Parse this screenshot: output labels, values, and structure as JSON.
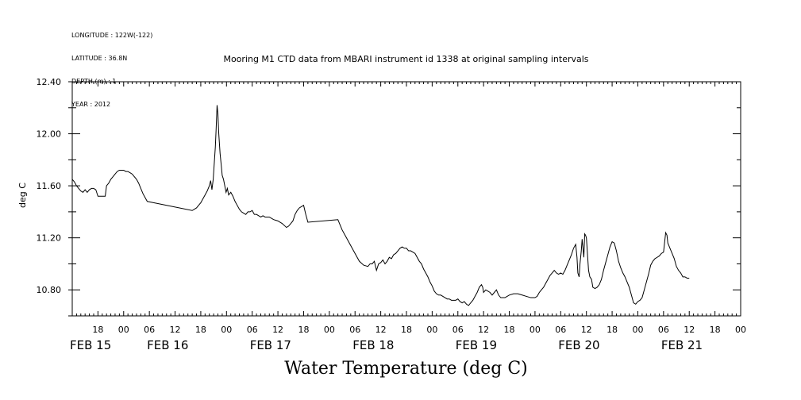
{
  "meta": {
    "longitude": "LONGITUDE : 122W(-122)",
    "latitude": "LATITUDE : 36.8N",
    "depth": "DEPTH (m) : 1",
    "year": "YEAR : 2012"
  },
  "chart_data": {
    "type": "line",
    "title": "Mooring M1 CTD data from MBARI instrument id 1338 at original sampling intervals",
    "ylabel": "deg C",
    "xlabel": "Water Temperature (deg C)",
    "ylim": [
      10.6,
      12.4
    ],
    "xlim_hours": [
      0,
      156
    ],
    "y_ticks": [
      "12.40",
      "12.00",
      "11.60",
      "11.20",
      "10.80"
    ],
    "hour_tick_labels": [
      {
        "h": 6,
        "label": "18"
      },
      {
        "h": 12,
        "label": "00"
      },
      {
        "h": 18,
        "label": "06"
      },
      {
        "h": 24,
        "label": "12"
      },
      {
        "h": 30,
        "label": "18"
      },
      {
        "h": 36,
        "label": "00"
      },
      {
        "h": 42,
        "label": "06"
      },
      {
        "h": 48,
        "label": "12"
      },
      {
        "h": 54,
        "label": "18"
      },
      {
        "h": 60,
        "label": "00"
      },
      {
        "h": 66,
        "label": "06"
      },
      {
        "h": 72,
        "label": "12"
      },
      {
        "h": 78,
        "label": "18"
      },
      {
        "h": 84,
        "label": "00"
      },
      {
        "h": 90,
        "label": "06"
      },
      {
        "h": 96,
        "label": "12"
      },
      {
        "h": 102,
        "label": "18"
      },
      {
        "h": 108,
        "label": "00"
      },
      {
        "h": 114,
        "label": "06"
      },
      {
        "h": 120,
        "label": "12"
      },
      {
        "h": 126,
        "label": "18"
      },
      {
        "h": 132,
        "label": "00"
      },
      {
        "h": 138,
        "label": "06"
      },
      {
        "h": 144,
        "label": "12"
      },
      {
        "h": 150,
        "label": "18"
      },
      {
        "h": 156,
        "label": "00"
      }
    ],
    "day_labels": [
      {
        "h": 0,
        "label": "FEB 15"
      },
      {
        "h": 18,
        "label": "FEB 16"
      },
      {
        "h": 42,
        "label": "FEB 17"
      },
      {
        "h": 66,
        "label": "FEB 18"
      },
      {
        "h": 90,
        "label": "FEB 19"
      },
      {
        "h": 114,
        "label": "FEB 20"
      },
      {
        "h": 138,
        "label": "FEB 21"
      }
    ],
    "series": [
      {
        "points": [
          [
            0.0,
            11.65
          ],
          [
            0.5,
            11.63
          ],
          [
            1.0,
            11.6
          ],
          [
            1.5,
            11.58
          ],
          [
            2.0,
            11.56
          ],
          [
            2.5,
            11.55
          ],
          [
            3.0,
            11.57
          ],
          [
            3.5,
            11.55
          ],
          [
            4.0,
            11.57
          ],
          [
            4.5,
            11.58
          ],
          [
            5.0,
            11.58
          ],
          [
            5.5,
            11.57
          ],
          [
            6.0,
            11.52
          ],
          [
            7.0,
            11.52
          ],
          [
            7.7,
            11.52
          ],
          [
            8.0,
            11.6
          ],
          [
            8.5,
            11.62
          ],
          [
            9.0,
            11.65
          ],
          [
            9.5,
            11.67
          ],
          [
            10.0,
            11.69
          ],
          [
            10.5,
            11.71
          ],
          [
            11.0,
            11.72
          ],
          [
            11.5,
            11.72
          ],
          [
            12.0,
            11.72
          ],
          [
            12.5,
            11.71
          ],
          [
            13.0,
            11.71
          ],
          [
            13.5,
            11.7
          ],
          [
            14.0,
            11.69
          ],
          [
            14.5,
            11.67
          ],
          [
            15.0,
            11.65
          ],
          [
            15.5,
            11.62
          ],
          [
            16.0,
            11.58
          ],
          [
            16.5,
            11.54
          ],
          [
            17.0,
            11.51
          ],
          [
            17.5,
            11.48
          ],
          [
            28.0,
            11.41
          ],
          [
            29.0,
            11.43
          ],
          [
            29.5,
            11.45
          ],
          [
            30.0,
            11.47
          ],
          [
            30.5,
            11.5
          ],
          [
            31.0,
            11.53
          ],
          [
            31.5,
            11.56
          ],
          [
            32.0,
            11.6
          ],
          [
            32.3,
            11.64
          ],
          [
            32.6,
            11.57
          ],
          [
            32.9,
            11.65
          ],
          [
            33.2,
            11.8
          ],
          [
            33.4,
            11.9
          ],
          [
            33.6,
            12.05
          ],
          [
            33.8,
            12.22
          ],
          [
            34.0,
            12.15
          ],
          [
            34.2,
            12.0
          ],
          [
            34.5,
            11.85
          ],
          [
            34.8,
            11.75
          ],
          [
            35.0,
            11.68
          ],
          [
            35.3,
            11.65
          ],
          [
            35.6,
            11.6
          ],
          [
            35.9,
            11.55
          ],
          [
            36.2,
            11.58
          ],
          [
            36.5,
            11.53
          ],
          [
            37.0,
            11.55
          ],
          [
            37.5,
            11.52
          ],
          [
            38.0,
            11.48
          ],
          [
            38.5,
            11.45
          ],
          [
            39.0,
            11.42
          ],
          [
            39.5,
            11.4
          ],
          [
            40.0,
            11.39
          ],
          [
            40.5,
            11.38
          ],
          [
            41.0,
            11.4
          ],
          [
            41.5,
            11.4
          ],
          [
            42.0,
            11.41
          ],
          [
            42.5,
            11.38
          ],
          [
            43.0,
            11.38
          ],
          [
            43.5,
            11.37
          ],
          [
            44.0,
            11.36
          ],
          [
            44.5,
            11.37
          ],
          [
            45.0,
            11.36
          ],
          [
            46.0,
            11.36
          ],
          [
            47.0,
            11.34
          ],
          [
            48.0,
            11.33
          ],
          [
            49.0,
            11.31
          ],
          [
            50.0,
            11.28
          ],
          [
            50.5,
            11.29
          ],
          [
            51.0,
            11.31
          ],
          [
            51.5,
            11.33
          ],
          [
            52.0,
            11.38
          ],
          [
            52.5,
            11.41
          ],
          [
            53.0,
            11.43
          ],
          [
            53.5,
            11.44
          ],
          [
            54.0,
            11.45
          ],
          [
            54.5,
            11.38
          ],
          [
            55.0,
            11.32
          ],
          [
            62.0,
            11.34
          ],
          [
            62.5,
            11.3
          ],
          [
            63.0,
            11.26
          ],
          [
            64.0,
            11.2
          ],
          [
            65.0,
            11.14
          ],
          [
            66.0,
            11.08
          ],
          [
            67.0,
            11.02
          ],
          [
            68.0,
            10.99
          ],
          [
            69.0,
            10.98
          ],
          [
            69.5,
            11.0
          ],
          [
            70.0,
            11.0
          ],
          [
            70.5,
            11.02
          ],
          [
            71.0,
            10.95
          ],
          [
            71.5,
            11.0
          ],
          [
            72.0,
            11.01
          ],
          [
            72.5,
            11.03
          ],
          [
            73.0,
            11.0
          ],
          [
            73.5,
            11.02
          ],
          [
            74.0,
            11.05
          ],
          [
            74.5,
            11.04
          ],
          [
            75.0,
            11.07
          ],
          [
            75.5,
            11.08
          ],
          [
            76.0,
            11.1
          ],
          [
            76.5,
            11.12
          ],
          [
            77.0,
            11.13
          ],
          [
            77.5,
            11.12
          ],
          [
            78.0,
            11.12
          ],
          [
            78.5,
            11.1
          ],
          [
            79.0,
            11.1
          ],
          [
            79.5,
            11.09
          ],
          [
            80.0,
            11.08
          ],
          [
            80.5,
            11.05
          ],
          [
            81.0,
            11.02
          ],
          [
            81.5,
            11.0
          ],
          [
            82.0,
            10.96
          ],
          [
            82.5,
            10.93
          ],
          [
            83.0,
            10.9
          ],
          [
            83.5,
            10.86
          ],
          [
            84.0,
            10.83
          ],
          [
            84.5,
            10.79
          ],
          [
            85.0,
            10.77
          ],
          [
            85.5,
            10.76
          ],
          [
            86.0,
            10.76
          ],
          [
            86.5,
            10.75
          ],
          [
            87.0,
            10.74
          ],
          [
            87.5,
            10.73
          ],
          [
            88.0,
            10.73
          ],
          [
            88.5,
            10.72
          ],
          [
            89.0,
            10.72
          ],
          [
            89.5,
            10.72
          ],
          [
            90.0,
            10.73
          ],
          [
            90.5,
            10.71
          ],
          [
            91.0,
            10.7
          ],
          [
            91.5,
            10.71
          ],
          [
            92.0,
            10.69
          ],
          [
            92.5,
            10.68
          ],
          [
            93.0,
            10.7
          ],
          [
            93.5,
            10.72
          ],
          [
            94.0,
            10.75
          ],
          [
            94.5,
            10.78
          ],
          [
            95.0,
            10.82
          ],
          [
            95.5,
            10.84
          ],
          [
            95.8,
            10.82
          ],
          [
            96.0,
            10.78
          ],
          [
            96.5,
            10.8
          ],
          [
            97.0,
            10.79
          ],
          [
            97.5,
            10.78
          ],
          [
            98.0,
            10.76
          ],
          [
            98.5,
            10.78
          ],
          [
            99.0,
            10.8
          ],
          [
            99.5,
            10.76
          ],
          [
            100.0,
            10.74
          ],
          [
            101.0,
            10.74
          ],
          [
            102.0,
            10.76
          ],
          [
            103.0,
            10.77
          ],
          [
            104.0,
            10.77
          ],
          [
            105.0,
            10.76
          ],
          [
            106.0,
            10.75
          ],
          [
            107.0,
            10.74
          ],
          [
            108.0,
            10.74
          ],
          [
            108.5,
            10.75
          ],
          [
            109.0,
            10.78
          ],
          [
            109.5,
            10.8
          ],
          [
            110.0,
            10.82
          ],
          [
            110.5,
            10.85
          ],
          [
            111.0,
            10.88
          ],
          [
            111.5,
            10.91
          ],
          [
            112.0,
            10.93
          ],
          [
            112.5,
            10.95
          ],
          [
            113.0,
            10.93
          ],
          [
            113.5,
            10.92
          ],
          [
            114.0,
            10.93
          ],
          [
            114.5,
            10.92
          ],
          [
            115.0,
            10.95
          ],
          [
            115.5,
            10.99
          ],
          [
            116.0,
            11.03
          ],
          [
            116.5,
            11.07
          ],
          [
            117.0,
            11.12
          ],
          [
            117.5,
            11.15
          ],
          [
            117.8,
            11.05
          ],
          [
            118.0,
            10.93
          ],
          [
            118.3,
            10.9
          ],
          [
            118.5,
            11.0
          ],
          [
            118.8,
            11.1
          ],
          [
            119.0,
            11.19
          ],
          [
            119.2,
            11.12
          ],
          [
            119.4,
            11.05
          ],
          [
            119.6,
            11.23
          ],
          [
            119.8,
            11.22
          ],
          [
            120.0,
            11.2
          ],
          [
            120.2,
            11.1
          ],
          [
            120.5,
            10.95
          ],
          [
            120.8,
            10.9
          ],
          [
            121.2,
            10.88
          ],
          [
            121.5,
            10.82
          ],
          [
            122.0,
            10.81
          ],
          [
            122.5,
            10.82
          ],
          [
            123.0,
            10.84
          ],
          [
            123.5,
            10.88
          ],
          [
            124.0,
            10.95
          ],
          [
            124.5,
            11.01
          ],
          [
            125.0,
            11.07
          ],
          [
            125.5,
            11.13
          ],
          [
            126.0,
            11.17
          ],
          [
            126.5,
            11.16
          ],
          [
            127.0,
            11.1
          ],
          [
            127.5,
            11.02
          ],
          [
            128.0,
            10.97
          ],
          [
            128.5,
            10.93
          ],
          [
            129.0,
            10.9
          ],
          [
            129.5,
            10.86
          ],
          [
            130.0,
            10.82
          ],
          [
            130.5,
            10.76
          ],
          [
            131.0,
            10.7
          ],
          [
            131.5,
            10.69
          ],
          [
            132.0,
            10.71
          ],
          [
            132.5,
            10.72
          ],
          [
            133.0,
            10.74
          ],
          [
            133.5,
            10.8
          ],
          [
            134.0,
            10.86
          ],
          [
            134.5,
            10.92
          ],
          [
            135.0,
            10.99
          ],
          [
            135.5,
            11.02
          ],
          [
            136.0,
            11.04
          ],
          [
            136.5,
            11.05
          ],
          [
            137.0,
            11.06
          ],
          [
            137.5,
            11.08
          ],
          [
            138.0,
            11.09
          ],
          [
            138.3,
            11.18
          ],
          [
            138.5,
            11.24
          ],
          [
            138.8,
            11.22
          ],
          [
            139.0,
            11.16
          ],
          [
            139.5,
            11.12
          ],
          [
            140.0,
            11.08
          ],
          [
            140.5,
            11.04
          ],
          [
            141.0,
            10.98
          ],
          [
            141.5,
            10.95
          ],
          [
            142.0,
            10.93
          ],
          [
            142.5,
            10.9
          ],
          [
            143.0,
            10.9
          ],
          [
            143.5,
            10.89
          ],
          [
            144.0,
            10.89
          ]
        ]
      }
    ]
  }
}
